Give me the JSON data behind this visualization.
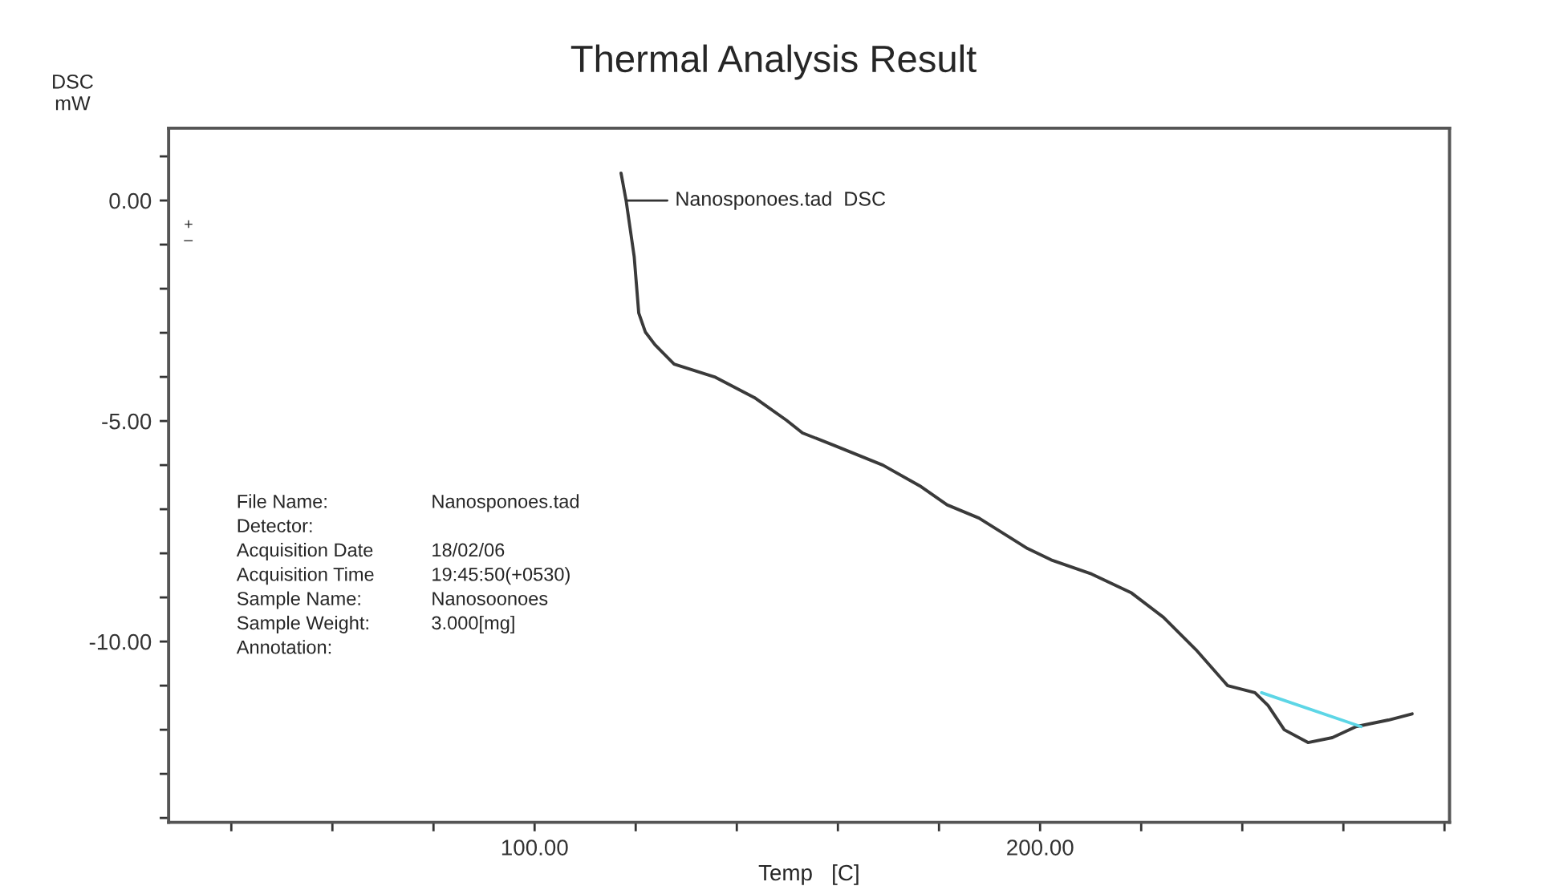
{
  "chart_data": {
    "type": "line",
    "title": "Thermal Analysis Result",
    "xlabel": "Temp   [C]",
    "ylabel": "DSC\nmW",
    "xlim": [
      27.6,
      281
    ],
    "ylim": [
      -14.1,
      1.64
    ],
    "xticks": [
      {
        "value": 40,
        "label": null
      },
      {
        "value": 60,
        "label": null
      },
      {
        "value": 80,
        "label": null
      },
      {
        "value": 100,
        "label": "100.00"
      },
      {
        "value": 120,
        "label": null
      },
      {
        "value": 140,
        "label": null
      },
      {
        "value": 160,
        "label": null
      },
      {
        "value": 180,
        "label": null
      },
      {
        "value": 200,
        "label": "200.00"
      },
      {
        "value": 220,
        "label": null
      },
      {
        "value": 240,
        "label": null
      },
      {
        "value": 260,
        "label": null
      },
      {
        "value": 280,
        "label": null
      }
    ],
    "yticks": [
      {
        "value": 1,
        "label": null
      },
      {
        "value": 0,
        "label": "0.00"
      },
      {
        "value": -1,
        "label": null
      },
      {
        "value": -2,
        "label": null
      },
      {
        "value": -3,
        "label": null
      },
      {
        "value": -4,
        "label": null
      },
      {
        "value": -5,
        "label": "-5.00"
      },
      {
        "value": -6,
        "label": null
      },
      {
        "value": -7,
        "label": null
      },
      {
        "value": -8,
        "label": null
      },
      {
        "value": -9,
        "label": null
      },
      {
        "value": -10,
        "label": "-10.00"
      },
      {
        "value": -11,
        "label": null
      },
      {
        "value": -12,
        "label": null
      },
      {
        "value": -13,
        "label": null
      },
      {
        "value": -14,
        "label": null
      }
    ],
    "grid": false,
    "legend": false,
    "line_style": "solid",
    "marker": "none",
    "series": [
      {
        "color": "#3a3a3a",
        "x": [
          117.1,
          118.1,
          119.7,
          120.6,
          121.9,
          123.8,
          127.6,
          135.6,
          143.5,
          149.8,
          153.0,
          159.4,
          168.9,
          176.2,
          181.6,
          187.9,
          197.5,
          202.2,
          210.2,
          218.1,
          224.4,
          230.8,
          237.1,
          242.5,
          245.1,
          248.3,
          253.0,
          257.8,
          262.5,
          268.9,
          273.6
        ],
        "values": [
          0.62,
          0.0,
          -1.27,
          -2.55,
          -2.98,
          -3.27,
          -3.71,
          -4.0,
          -4.47,
          -4.98,
          -5.27,
          -5.56,
          -6.0,
          -6.47,
          -6.9,
          -7.2,
          -7.89,
          -8.15,
          -8.47,
          -8.9,
          -9.45,
          -10.18,
          -11.0,
          -11.16,
          -11.45,
          -12.0,
          -12.29,
          -12.18,
          -11.93,
          -11.78,
          -11.64
        ]
      },
      {
        "color": "#5dd6e6",
        "x": [
          243.8,
          263.5
        ],
        "values": [
          -11.16,
          -11.93
        ]
      }
    ],
    "annotations": [
      {
        "text": "Nanosponoes.tad  DSC",
        "x": 118.1,
        "y": 0.0
      },
      "+",
      "–",
      "File Name:\tNanosponoes.tad",
      "Detector:",
      "Acquisition Date\t18/02/06",
      "Acquisition Time\t19:45:50(+0530)",
      "Sample Name:\tNanosoonoes",
      "Sample Weight:\t3.000[mg]",
      "Annotation:"
    ]
  }
}
